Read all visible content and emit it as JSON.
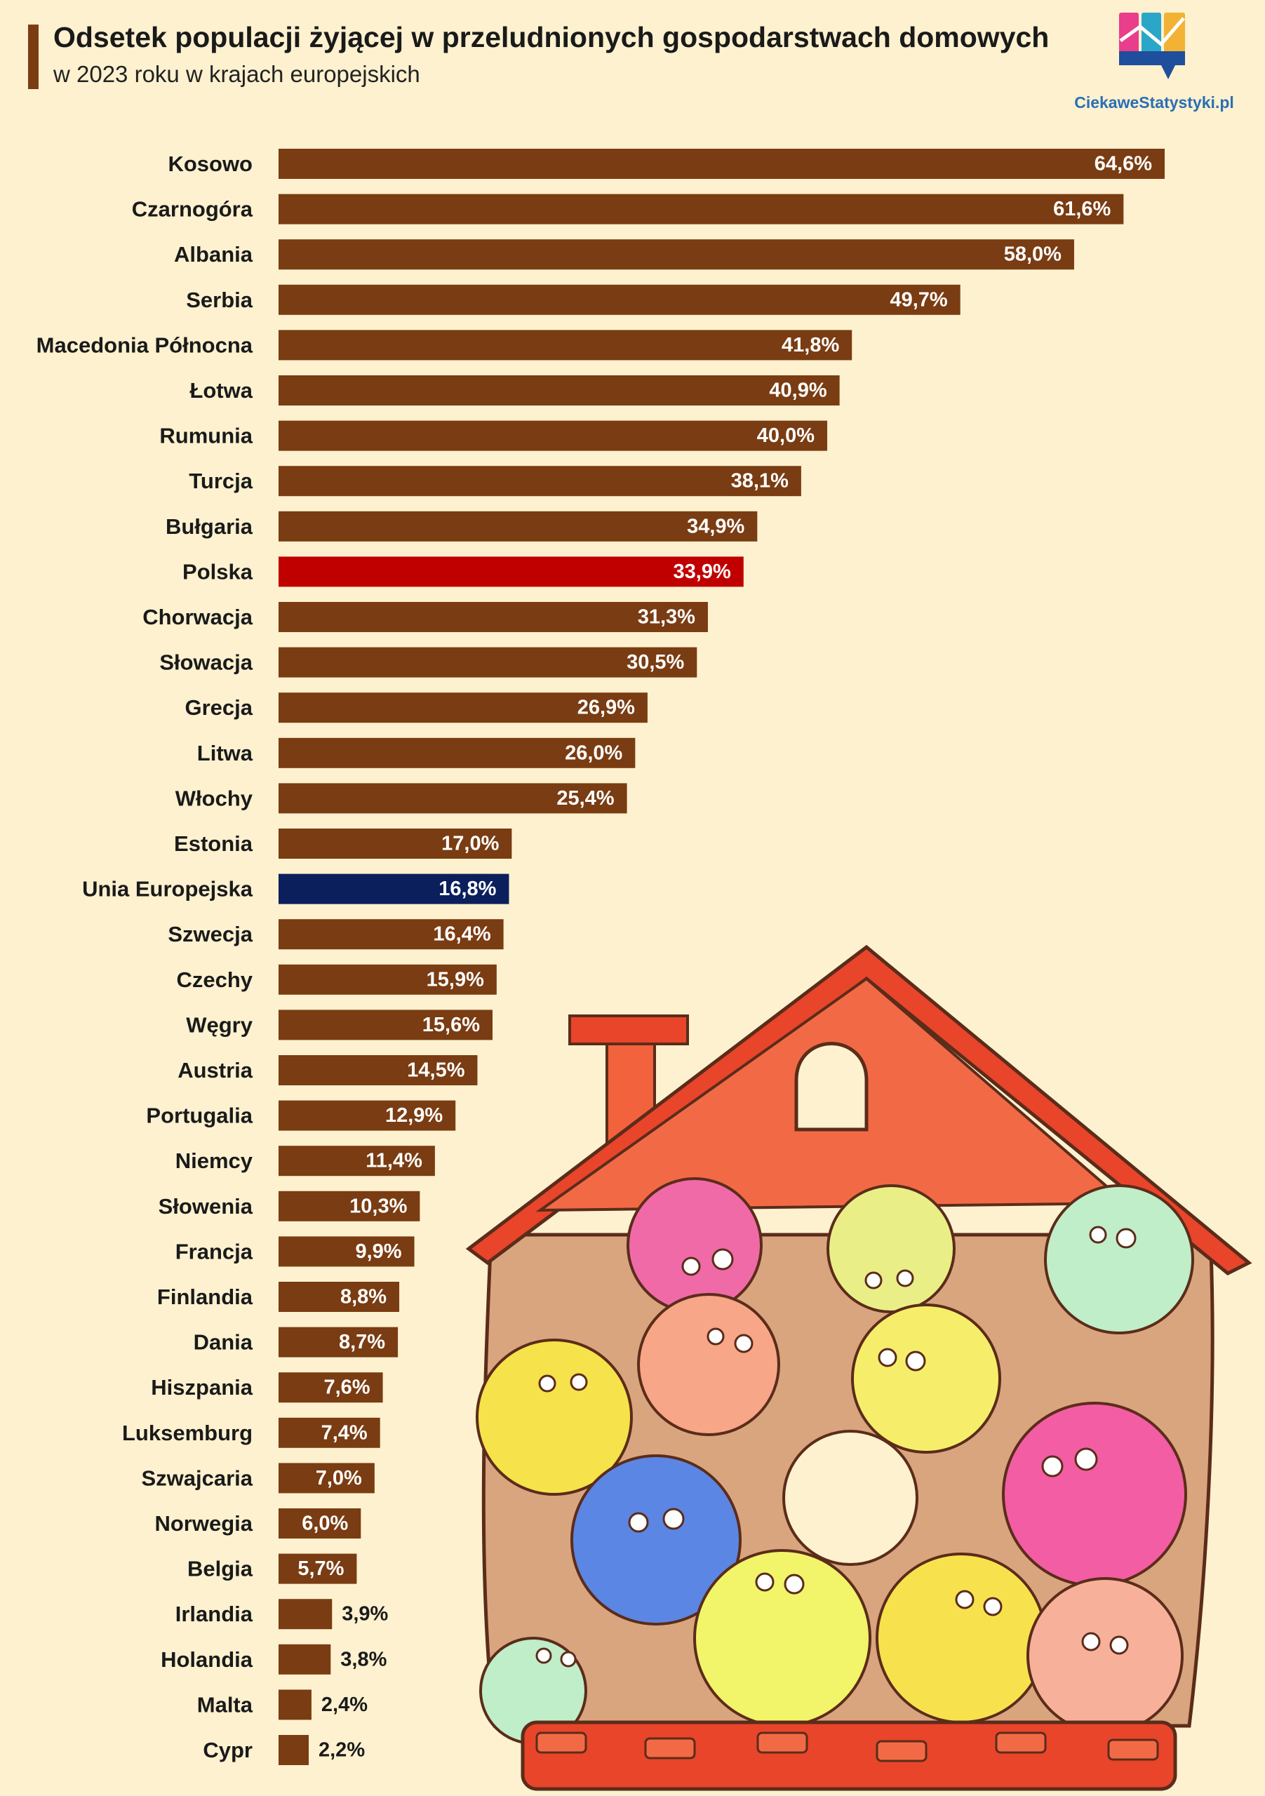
{
  "header": {
    "title": "Odsetek populacji żyjącej w przeludnionych gospodarstwach domowych",
    "subtitle": "w 2023 roku w krajach europejskich"
  },
  "logo": {
    "text": "CiekaweStatystyki.pl",
    "icon": "bar-chart-logo-icon"
  },
  "colors": {
    "bar_default": "#7a3c12",
    "bar_highlight_poland": "#c00000",
    "bar_highlight_eu": "#0b1f5c",
    "background": "#fdf1cf"
  },
  "illustration": {
    "icon": "crowded-house-illustration"
  },
  "chart_data": {
    "type": "bar",
    "orientation": "horizontal",
    "title": "Odsetek populacji żyjącej w przeludnionych gospodarstwach domowych",
    "subtitle": "w 2023 roku w krajach europejskich",
    "xlim": [
      0,
      64.6
    ],
    "grid": false,
    "legend": "none",
    "categories": [
      "Kosowo",
      "Czarnogóra",
      "Albania",
      "Serbia",
      "Macedonia Północna",
      "Łotwa",
      "Rumunia",
      "Turcja",
      "Bułgaria",
      "Polska",
      "Chorwacja",
      "Słowacja",
      "Grecja",
      "Litwa",
      "Włochy",
      "Estonia",
      "Unia Europejska",
      "Szwecja",
      "Czechy",
      "Węgry",
      "Austria",
      "Portugalia",
      "Niemcy",
      "Słowenia",
      "Francja",
      "Finlandia",
      "Dania",
      "Hiszpania",
      "Luksemburg",
      "Szwajcaria",
      "Norwegia",
      "Belgia",
      "Irlandia",
      "Holandia",
      "Malta",
      "Cypr"
    ],
    "values": [
      64.6,
      61.6,
      58.0,
      49.7,
      41.8,
      40.9,
      40.0,
      38.1,
      34.9,
      33.9,
      31.3,
      30.5,
      26.9,
      26.0,
      25.4,
      17.0,
      16.8,
      16.4,
      15.9,
      15.6,
      14.5,
      12.9,
      11.4,
      10.3,
      9.9,
      8.8,
      8.7,
      7.6,
      7.4,
      7.0,
      6.0,
      5.7,
      3.9,
      3.8,
      2.4,
      2.2
    ],
    "value_labels": [
      "64,6%",
      "61,6%",
      "58,0%",
      "49,7%",
      "41,8%",
      "40,9%",
      "40,0%",
      "38,1%",
      "34,9%",
      "33,9%",
      "31,3%",
      "30,5%",
      "26,9%",
      "26,0%",
      "25,4%",
      "17,0%",
      "16,8%",
      "16,4%",
      "15,9%",
      "15,6%",
      "14,5%",
      "12,9%",
      "11,4%",
      "10,3%",
      "9,9%",
      "8,8%",
      "8,7%",
      "7,6%",
      "7,4%",
      "7,0%",
      "6,0%",
      "5,7%",
      "3,9%",
      "3,8%",
      "2,4%",
      "2,2%"
    ],
    "highlight": {
      "Polska": "#c00000",
      "Unia Europejska": "#0b1f5c"
    }
  }
}
